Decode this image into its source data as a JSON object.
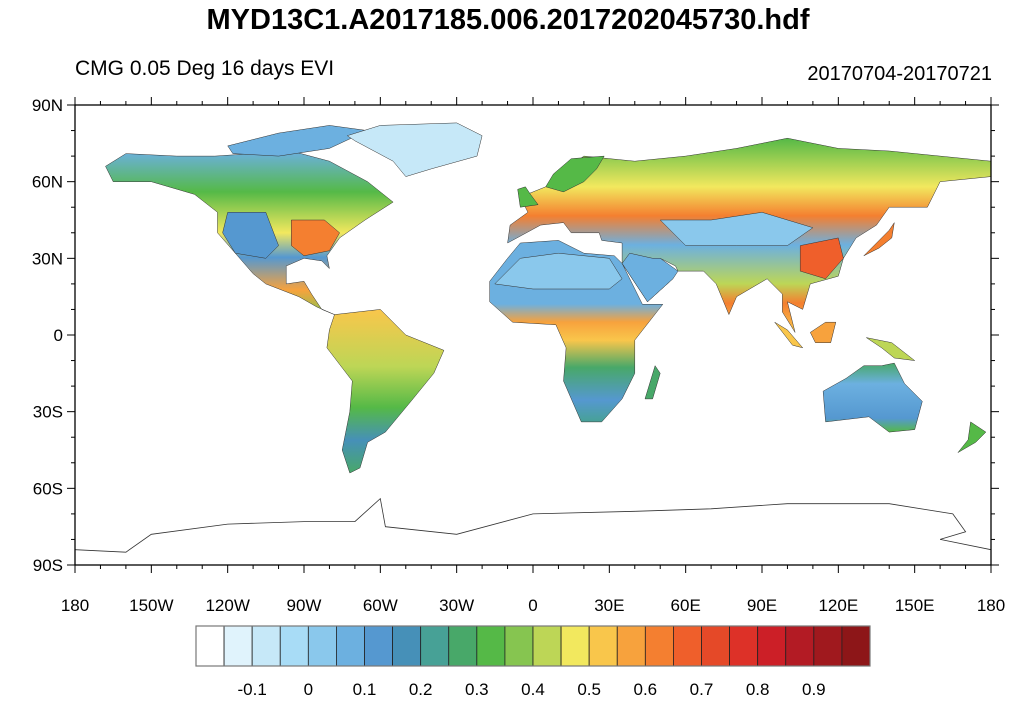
{
  "title": "MYD13C1.A2017185.006.2017202045730.hdf",
  "subtitle_left": "CMG 0.05 Deg 16 days EVI",
  "subtitle_right": "20170704-20170721",
  "map": {
    "projection": "cylindrical equidistant",
    "lon_range": [
      -180,
      180
    ],
    "lat_range": [
      -90,
      90
    ],
    "lat_ticks": [
      {
        "value": 90,
        "label": "90N"
      },
      {
        "value": 60,
        "label": "60N"
      },
      {
        "value": 30,
        "label": "30N"
      },
      {
        "value": 0,
        "label": "0"
      },
      {
        "value": -30,
        "label": "30S"
      },
      {
        "value": -60,
        "label": "60S"
      },
      {
        "value": -90,
        "label": "90S"
      }
    ],
    "lon_ticks": [
      {
        "value": -180,
        "label": "180"
      },
      {
        "value": -150,
        "label": "150W"
      },
      {
        "value": -120,
        "label": "120W"
      },
      {
        "value": -90,
        "label": "90W"
      },
      {
        "value": -60,
        "label": "60W"
      },
      {
        "value": -30,
        "label": "30W"
      },
      {
        "value": 0,
        "label": "0"
      },
      {
        "value": 30,
        "label": "30E"
      },
      {
        "value": 60,
        "label": "60E"
      },
      {
        "value": 90,
        "label": "90E"
      },
      {
        "value": 120,
        "label": "120E"
      },
      {
        "value": 150,
        "label": "150E"
      },
      {
        "value": 180,
        "label": "180"
      }
    ]
  },
  "colorbar": {
    "colors": [
      "#ffffff",
      "#e0f3fc",
      "#c6e8f8",
      "#a8dcf6",
      "#8ac8ec",
      "#6cb0e0",
      "#5598d0",
      "#4690b8",
      "#47a196",
      "#48a869",
      "#55b947",
      "#86c550",
      "#bdd656",
      "#f2e85e",
      "#f9c64b",
      "#f7a23d",
      "#f47f30",
      "#ef5f2b",
      "#e54928",
      "#dd3128",
      "#cc1f27",
      "#b31b24",
      "#a0191e",
      "#8d1618"
    ],
    "labels": [
      {
        "value": -0.1,
        "label": "-0.1",
        "boundary": 2
      },
      {
        "value": 0,
        "label": "0",
        "boundary": 4
      },
      {
        "value": 0.1,
        "label": "0.1",
        "boundary": 6
      },
      {
        "value": 0.2,
        "label": "0.2",
        "boundary": 8
      },
      {
        "value": 0.3,
        "label": "0.3",
        "boundary": 10
      },
      {
        "value": 0.4,
        "label": "0.4",
        "boundary": 12
      },
      {
        "value": 0.5,
        "label": "0.5",
        "boundary": 14
      },
      {
        "value": 0.6,
        "label": "0.6",
        "boundary": 16
      },
      {
        "value": 0.7,
        "label": "0.7",
        "boundary": 18
      },
      {
        "value": 0.8,
        "label": "0.8",
        "boundary": 20
      },
      {
        "value": 0.9,
        "label": "0.9",
        "boundary": 22
      }
    ]
  }
}
